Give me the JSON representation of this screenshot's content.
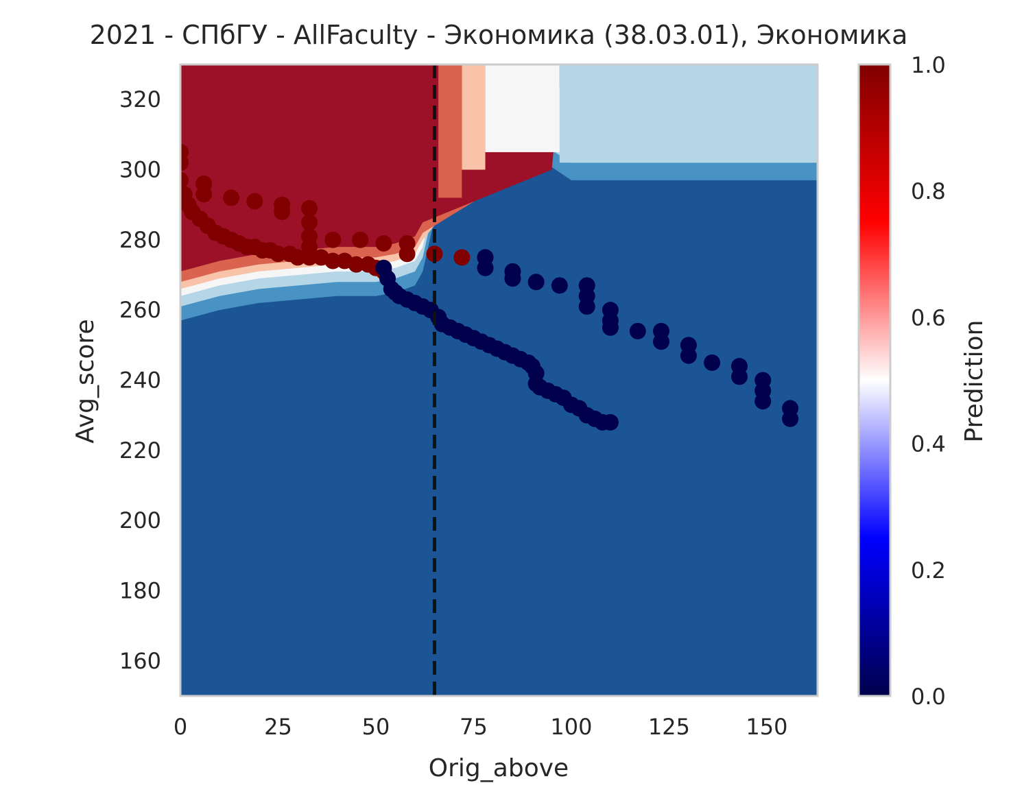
{
  "chart_data": {
    "type": "scatter",
    "title": "2021 - СПбГУ - AllFaculty - Экономика (38.03.01), Экономика",
    "xlabel": "Orig_above",
    "ylabel": "Avg_score",
    "xlim": [
      0,
      163
    ],
    "ylim": [
      150,
      330
    ],
    "xticks": [
      0,
      25,
      50,
      75,
      100,
      125,
      150
    ],
    "yticks": [
      160,
      180,
      200,
      220,
      240,
      260,
      280,
      300,
      320
    ],
    "grid": false,
    "vline": {
      "x": 65,
      "style": "dashed",
      "color": "#111111"
    },
    "background": {
      "description_type": "filled-contour of prediction probability",
      "palette": [
        "#1b5595",
        "#4893c4",
        "#b5d6e6",
        "#f6f6f6",
        "#f8c3a8",
        "#d9634f",
        "#9c1127"
      ],
      "boundary_levels": [
        {
          "x": 0,
          "y_upper": 266
        },
        {
          "x": 10,
          "y_upper": 269
        },
        {
          "x": 20,
          "y_upper": 271
        },
        {
          "x": 30,
          "y_upper": 272
        },
        {
          "x": 40,
          "y_upper": 273
        },
        {
          "x": 50,
          "y_upper": 273
        },
        {
          "x": 55,
          "y_upper": 274
        },
        {
          "x": 60,
          "y_upper": 276
        },
        {
          "x": 62,
          "y_upper": 280
        },
        {
          "x": 65,
          "y_upper": 295
        },
        {
          "x": 68,
          "y_upper": 330
        }
      ]
    },
    "colorbar": {
      "label": "Prediction",
      "ticks": [
        "0.0",
        "0.2",
        "0.4",
        "0.6",
        "0.8",
        "1.0"
      ],
      "colormap": "seismic"
    },
    "series": [
      {
        "class": 1,
        "color": "#800000",
        "points": [
          [
            0,
            305
          ],
          [
            0,
            302
          ],
          [
            0,
            297
          ],
          [
            1,
            293
          ],
          [
            2,
            290
          ],
          [
            3,
            288
          ],
          [
            5,
            286
          ],
          [
            7,
            284
          ],
          [
            9,
            282
          ],
          [
            11,
            281
          ],
          [
            13,
            280
          ],
          [
            15,
            279
          ],
          [
            17,
            278
          ],
          [
            19,
            278
          ],
          [
            21,
            277
          ],
          [
            23,
            277
          ],
          [
            25,
            276
          ],
          [
            28,
            276
          ],
          [
            30,
            275
          ],
          [
            33,
            275
          ],
          [
            36,
            275
          ],
          [
            39,
            274
          ],
          [
            42,
            274
          ],
          [
            45,
            273
          ],
          [
            48,
            273
          ],
          [
            50,
            272
          ],
          [
            52,
            271
          ],
          [
            6,
            296
          ],
          [
            6,
            293
          ],
          [
            13,
            292
          ],
          [
            19,
            291
          ],
          [
            26,
            290
          ],
          [
            26,
            288
          ],
          [
            33,
            289
          ],
          [
            33,
            285
          ],
          [
            33,
            281
          ],
          [
            33,
            278
          ],
          [
            39,
            280
          ],
          [
            46,
            280
          ],
          [
            52,
            279
          ],
          [
            58,
            279
          ],
          [
            58,
            276
          ],
          [
            65,
            276
          ],
          [
            72,
            275
          ],
          [
            78,
            275
          ]
        ]
      },
      {
        "class": 0,
        "color": "#00004c",
        "points": [
          [
            52,
            272
          ],
          [
            53,
            269
          ],
          [
            54,
            266
          ],
          [
            55,
            265
          ],
          [
            56,
            264
          ],
          [
            58,
            263
          ],
          [
            60,
            262
          ],
          [
            62,
            261
          ],
          [
            64,
            260
          ],
          [
            66,
            258
          ],
          [
            67,
            256
          ],
          [
            69,
            255
          ],
          [
            71,
            254
          ],
          [
            73,
            253
          ],
          [
            75,
            252
          ],
          [
            77,
            251
          ],
          [
            79,
            250
          ],
          [
            81,
            249
          ],
          [
            83,
            248
          ],
          [
            85,
            247
          ],
          [
            87,
            246
          ],
          [
            89,
            245
          ],
          [
            90,
            244
          ],
          [
            91,
            242
          ],
          [
            91,
            239
          ],
          [
            92,
            238
          ],
          [
            94,
            237
          ],
          [
            96,
            236
          ],
          [
            98,
            235
          ],
          [
            100,
            233
          ],
          [
            102,
            232
          ],
          [
            104,
            230
          ],
          [
            106,
            229
          ],
          [
            108,
            228
          ],
          [
            110,
            228
          ],
          [
            78,
            275
          ],
          [
            78,
            272
          ],
          [
            85,
            271
          ],
          [
            85,
            269
          ],
          [
            91,
            268
          ],
          [
            97,
            267
          ],
          [
            104,
            267
          ],
          [
            104,
            264
          ],
          [
            104,
            261
          ],
          [
            110,
            260
          ],
          [
            110,
            257
          ],
          [
            110,
            255
          ],
          [
            117,
            254
          ],
          [
            123,
            254
          ],
          [
            123,
            251
          ],
          [
            130,
            250
          ],
          [
            130,
            247
          ],
          [
            136,
            245
          ],
          [
            143,
            244
          ],
          [
            143,
            241
          ],
          [
            149,
            240
          ],
          [
            149,
            237
          ],
          [
            149,
            234
          ],
          [
            156,
            232
          ],
          [
            156,
            229
          ]
        ]
      }
    ]
  }
}
